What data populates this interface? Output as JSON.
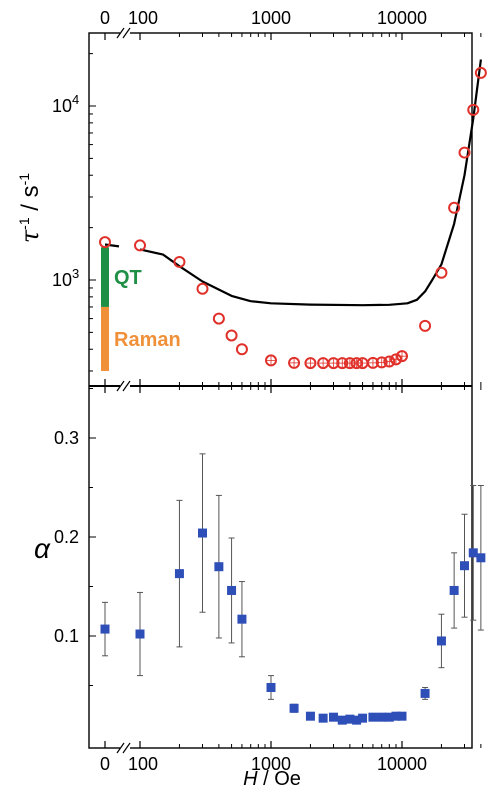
{
  "chart_data": [
    {
      "type": "scatter",
      "panel": "top",
      "xscale": "log-with-break",
      "yscale": "log",
      "xlabel": "",
      "ylabel": "τ-1 / s-1",
      "xlim": [
        "0 (break)",
        40000
      ],
      "ylim": [
        300,
        20000
      ],
      "top_tick_labels": [
        "0",
        "100",
        "1000",
        "10000"
      ],
      "y_tick_labels": [
        {
          "base": "10",
          "exp": "3",
          "value": 1000
        },
        {
          "base": "10",
          "exp": "4",
          "value": 10000
        }
      ],
      "grid": false,
      "series": [
        {
          "kind": "circles",
          "color": "#e0302a",
          "points": [
            {
              "x": 0,
              "y": 1650
            },
            {
              "x": 100,
              "y": 1580
            },
            {
              "x": 200,
              "y": 1270
            },
            {
              "x": 300,
              "y": 890
            },
            {
              "x": 400,
              "y": 600
            },
            {
              "x": 500,
              "y": 480
            },
            {
              "x": 600,
              "y": 400
            },
            {
              "x": 1000,
              "y": 345
            },
            {
              "x": 1500,
              "y": 334
            },
            {
              "x": 2000,
              "y": 333
            },
            {
              "x": 2500,
              "y": 333
            },
            {
              "x": 3000,
              "y": 333
            },
            {
              "x": 3500,
              "y": 333
            },
            {
              "x": 4000,
              "y": 333
            },
            {
              "x": 4500,
              "y": 333
            },
            {
              "x": 5000,
              "y": 333
            },
            {
              "x": 6000,
              "y": 334
            },
            {
              "x": 7000,
              "y": 336
            },
            {
              "x": 8000,
              "y": 340
            },
            {
              "x": 9000,
              "y": 350
            },
            {
              "x": 10000,
              "y": 365
            },
            {
              "x": 15000,
              "y": 545
            },
            {
              "x": 20000,
              "y": 1100
            },
            {
              "x": 25000,
              "y": 2600
            },
            {
              "x": 30000,
              "y": 5400
            },
            {
              "x": 35000,
              "y": 9500
            },
            {
              "x": 40000,
              "y": 15500
            }
          ]
        },
        {
          "kind": "fit-line",
          "color": "#000000",
          "points": [
            {
              "x": 0,
              "y": 1600
            },
            {
              "x": 100,
              "y": 1500
            },
            {
              "x": 150,
              "y": 1400
            },
            {
              "x": 200,
              "y": 1200
            },
            {
              "x": 300,
              "y": 980
            },
            {
              "x": 500,
              "y": 810
            },
            {
              "x": 700,
              "y": 755
            },
            {
              "x": 1000,
              "y": 735
            },
            {
              "x": 2000,
              "y": 722
            },
            {
              "x": 5000,
              "y": 716
            },
            {
              "x": 8000,
              "y": 720
            },
            {
              "x": 11000,
              "y": 735
            },
            {
              "x": 13000,
              "y": 770
            },
            {
              "x": 15000,
              "y": 860
            },
            {
              "x": 17000,
              "y": 1000
            },
            {
              "x": 20000,
              "y": 1230
            },
            {
              "x": 25000,
              "y": 2100
            },
            {
              "x": 30000,
              "y": 4000
            },
            {
              "x": 35000,
              "y": 8500
            },
            {
              "x": 40000,
              "y": 18500
            }
          ]
        }
      ],
      "contributions": [
        {
          "label": "QT",
          "color": "#1f8f45",
          "y_from": 700,
          "y_to": 1540
        },
        {
          "label": "Raman",
          "color": "#f0913a",
          "y_from": 300,
          "y_to": 700
        }
      ]
    },
    {
      "type": "scatter",
      "panel": "bottom",
      "xscale": "log-with-break",
      "xlabel": "H / Oe",
      "ylabel": "α",
      "ylim": [
        0.0,
        0.35
      ],
      "x_tick_labels": [
        "0",
        "100",
        "1000",
        "10000"
      ],
      "y_tick_labels": [
        "0.1",
        "0.2",
        "0.3"
      ],
      "grid": false,
      "series": [
        {
          "kind": "squares-with-errorbars",
          "color": "#2f4fb8",
          "points": [
            {
              "x": 0,
              "y": 0.107,
              "err": 0.027
            },
            {
              "x": 100,
              "y": 0.102,
              "err": 0.042
            },
            {
              "x": 200,
              "y": 0.163,
              "err": 0.074
            },
            {
              "x": 300,
              "y": 0.204,
              "err": 0.08
            },
            {
              "x": 400,
              "y": 0.17,
              "err": 0.072
            },
            {
              "x": 500,
              "y": 0.146,
              "err": 0.053
            },
            {
              "x": 600,
              "y": 0.117,
              "err": 0.038
            },
            {
              "x": 1000,
              "y": 0.048,
              "err": 0.012
            },
            {
              "x": 1500,
              "y": 0.027,
              "err": 0.004
            },
            {
              "x": 2000,
              "y": 0.019,
              "err": 0.003
            },
            {
              "x": 2500,
              "y": 0.017,
              "err": 0.003
            },
            {
              "x": 3000,
              "y": 0.018,
              "err": 0.003
            },
            {
              "x": 3500,
              "y": 0.015,
              "err": 0.003
            },
            {
              "x": 4000,
              "y": 0.016,
              "err": 0.003
            },
            {
              "x": 4500,
              "y": 0.015,
              "err": 0.003
            },
            {
              "x": 5000,
              "y": 0.017,
              "err": 0.003
            },
            {
              "x": 6000,
              "y": 0.018,
              "err": 0.003
            },
            {
              "x": 7000,
              "y": 0.018,
              "err": 0.003
            },
            {
              "x": 8000,
              "y": 0.018,
              "err": 0.003
            },
            {
              "x": 9000,
              "y": 0.019,
              "err": 0.003
            },
            {
              "x": 10000,
              "y": 0.019,
              "err": 0.003
            },
            {
              "x": 15000,
              "y": 0.042,
              "err": 0.006
            },
            {
              "x": 20000,
              "y": 0.095,
              "err": 0.027
            },
            {
              "x": 25000,
              "y": 0.146,
              "err": 0.038
            },
            {
              "x": 30000,
              "y": 0.171,
              "err": 0.052
            },
            {
              "x": 35000,
              "y": 0.184,
              "err": 0.068
            },
            {
              "x": 40000,
              "y": 0.179,
              "err": 0.073
            }
          ]
        }
      ]
    }
  ]
}
